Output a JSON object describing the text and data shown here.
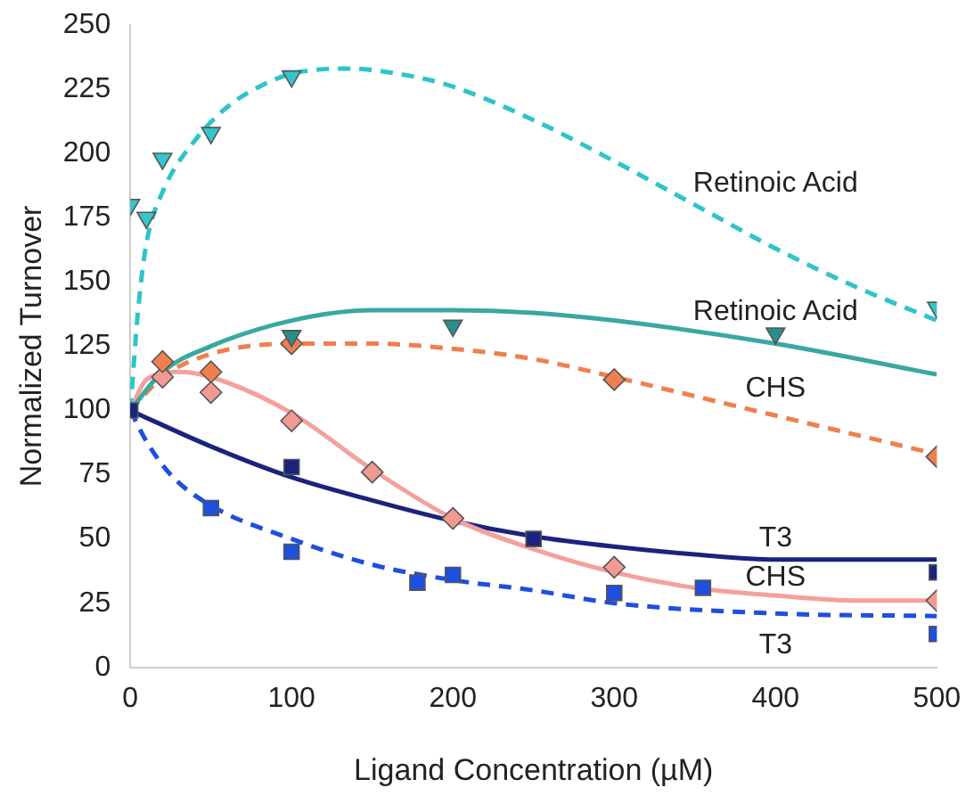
{
  "chart_data": {
    "type": "scatter",
    "xlabel": "Ligand Concentration (µM)",
    "ylabel": "Normalized Turnover",
    "xlim": [
      0,
      500
    ],
    "xticks": [
      0,
      100,
      200,
      300,
      400,
      500
    ],
    "ylim": [
      0,
      250
    ],
    "yticks": [
      0,
      25,
      50,
      75,
      100,
      125,
      150,
      175,
      200,
      225,
      250
    ],
    "grid": false,
    "legend": false,
    "series": [
      {
        "type": "line",
        "name": "Retinoic Acid",
        "color": "#2ec4c9",
        "line_style": "dashed",
        "marker": "none",
        "x": [
          0,
          5,
          10,
          20,
          40,
          60,
          80,
          100,
          135,
          175,
          200,
          250,
          300,
          350,
          400,
          450,
          500
        ],
        "values": [
          100,
          140,
          165,
          185,
          205,
          218,
          226,
          231,
          233,
          230,
          226,
          213,
          197,
          180,
          163,
          148,
          135
        ]
      },
      {
        "type": "line",
        "name": "Retinoic Acid",
        "color": "#3aa8a0",
        "line_style": "solid",
        "marker": "none",
        "x": [
          0,
          20,
          50,
          100,
          150,
          200,
          250,
          300,
          400,
          500
        ],
        "values": [
          100,
          115,
          125,
          135,
          139,
          139,
          138,
          135,
          126,
          114
        ]
      },
      {
        "type": "line",
        "name": "CHS",
        "color": "#f07f4f",
        "line_style": "dashed",
        "marker": "none",
        "x": [
          0,
          20,
          50,
          100,
          150,
          200,
          250,
          300,
          400,
          500
        ],
        "values": [
          100,
          113,
          122,
          126,
          126,
          124,
          120,
          113,
          98,
          83
        ]
      },
      {
        "type": "line",
        "name": "CHS",
        "color": "#f4a09c",
        "line_style": "solid",
        "marker": "none",
        "x": [
          0,
          10,
          30,
          50,
          100,
          150,
          200,
          250,
          300,
          350,
          400,
          450,
          500
        ],
        "values": [
          100,
          112,
          115,
          113,
          99,
          77,
          58,
          46,
          37,
          31,
          28,
          26,
          26
        ]
      },
      {
        "type": "line",
        "name": "T3",
        "color": "#1a237e",
        "line_style": "solid",
        "marker": "none",
        "x": [
          0,
          50,
          100,
          150,
          200,
          250,
          300,
          350,
          400,
          500
        ],
        "values": [
          100,
          86,
          74,
          65,
          57,
          51,
          47,
          44,
          42,
          42
        ]
      },
      {
        "type": "line",
        "name": "T3",
        "color": "#1f4fe0",
        "line_style": "dashed",
        "marker": "none",
        "x": [
          0,
          10,
          25,
          50,
          100,
          150,
          200,
          250,
          300,
          400,
          500
        ],
        "values": [
          100,
          88,
          75,
          63,
          50,
          40,
          34,
          30,
          25,
          21,
          20
        ]
      },
      {
        "type": "scatter",
        "color": "#33c6cc",
        "marker": "triangle",
        "x": [
          0,
          10,
          20,
          50,
          100,
          500
        ],
        "values": [
          180,
          175,
          198,
          208,
          230,
          140
        ]
      },
      {
        "type": "scatter",
        "color": "#2a8f8c",
        "marker": "triangle",
        "x": [
          100,
          200,
          400
        ],
        "values": [
          129,
          133,
          130
        ]
      },
      {
        "type": "scatter",
        "color": "#f07f4f",
        "marker": "diamond",
        "x": [
          20,
          50,
          100,
          300,
          500
        ],
        "values": [
          119,
          115,
          126,
          112,
          82
        ]
      },
      {
        "type": "scatter",
        "color": "#f19a94",
        "marker": "diamond",
        "x": [
          20,
          50,
          100,
          150,
          200,
          300,
          500
        ],
        "values": [
          113,
          107,
          96,
          76,
          58,
          39,
          26
        ]
      },
      {
        "type": "scatter",
        "color": "#1a237e",
        "marker": "square",
        "x": [
          0,
          100,
          250,
          500
        ],
        "values": [
          100,
          78,
          50,
          37
        ]
      },
      {
        "type": "scatter",
        "color": "#1f4fe0",
        "marker": "square",
        "x": [
          50,
          100,
          178,
          200,
          300,
          355,
          500
        ],
        "values": [
          62,
          45,
          33,
          36,
          29,
          31,
          13
        ]
      }
    ]
  }
}
